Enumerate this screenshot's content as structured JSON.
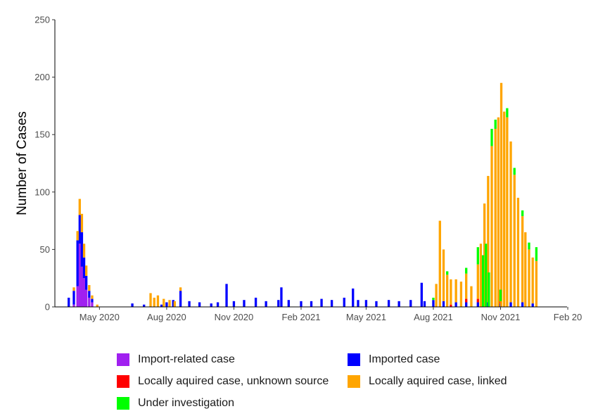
{
  "chart_data": {
    "type": "bar",
    "stacked": true,
    "title": "",
    "xlabel": "",
    "ylabel": "Number of Cases",
    "ylim": [
      0,
      250
    ],
    "y_ticks": [
      0,
      50,
      100,
      150,
      200,
      250
    ],
    "x_range": [
      "2020-03-01",
      "2022-01-31"
    ],
    "x_ticks": [
      {
        "date": "2020-05-01",
        "label": "May 2020"
      },
      {
        "date": "2020-08-01",
        "label": "Aug 2020"
      },
      {
        "date": "2020-11-01",
        "label": "Nov 2020"
      },
      {
        "date": "2021-02-01",
        "label": "Feb 2021"
      },
      {
        "date": "2021-05-01",
        "label": "May 2021"
      },
      {
        "date": "2021-08-01",
        "label": "Aug 2021"
      },
      {
        "date": "2021-11-01",
        "label": "Nov 2021"
      },
      {
        "date": "2022-02-01",
        "label": "Feb 20"
      }
    ],
    "grid": false,
    "legend_position": "bottom",
    "series": [
      {
        "key": "import_related",
        "name": "Import-related case",
        "color": "#a020f0",
        "points": [
          [
            "2020-03-27",
            2
          ],
          [
            "2020-04-01",
            18
          ],
          [
            "2020-04-04",
            55
          ],
          [
            "2020-04-07",
            35
          ],
          [
            "2020-04-10",
            25
          ],
          [
            "2020-04-13",
            15
          ],
          [
            "2020-04-17",
            8
          ],
          [
            "2020-04-21",
            4
          ]
        ]
      },
      {
        "key": "imported",
        "name": "Imported case",
        "color": "#0000ff",
        "points": [
          [
            "2020-03-20",
            8
          ],
          [
            "2020-03-27",
            12
          ],
          [
            "2020-04-01",
            40
          ],
          [
            "2020-04-04",
            25
          ],
          [
            "2020-04-07",
            30
          ],
          [
            "2020-04-10",
            18
          ],
          [
            "2020-04-13",
            12
          ],
          [
            "2020-04-17",
            6
          ],
          [
            "2020-04-21",
            3
          ],
          [
            "2020-06-15",
            3
          ],
          [
            "2020-07-01",
            2
          ],
          [
            "2020-07-25",
            2
          ],
          [
            "2020-08-01",
            4
          ],
          [
            "2020-08-10",
            6
          ],
          [
            "2020-08-20",
            14
          ],
          [
            "2020-09-01",
            5
          ],
          [
            "2020-09-15",
            4
          ],
          [
            "2020-10-01",
            3
          ],
          [
            "2020-10-10",
            4
          ],
          [
            "2020-10-22",
            20
          ],
          [
            "2020-11-01",
            5
          ],
          [
            "2020-11-15",
            6
          ],
          [
            "2020-12-01",
            8
          ],
          [
            "2020-12-15",
            5
          ],
          [
            "2021-01-01",
            6
          ],
          [
            "2021-01-05",
            17
          ],
          [
            "2021-01-15",
            6
          ],
          [
            "2021-02-01",
            5
          ],
          [
            "2021-02-15",
            5
          ],
          [
            "2021-03-01",
            7
          ],
          [
            "2021-03-15",
            6
          ],
          [
            "2021-04-01",
            8
          ],
          [
            "2021-04-13",
            16
          ],
          [
            "2021-04-20",
            6
          ],
          [
            "2021-05-01",
            6
          ],
          [
            "2021-05-15",
            5
          ],
          [
            "2021-06-01",
            6
          ],
          [
            "2021-06-15",
            5
          ],
          [
            "2021-07-01",
            6
          ],
          [
            "2021-07-16",
            21
          ],
          [
            "2021-07-20",
            5
          ],
          [
            "2021-08-01",
            6
          ],
          [
            "2021-08-15",
            5
          ],
          [
            "2021-09-01",
            4
          ],
          [
            "2021-09-15",
            4
          ],
          [
            "2021-10-01",
            4
          ],
          [
            "2021-10-15",
            4
          ],
          [
            "2021-11-01",
            3
          ],
          [
            "2021-11-15",
            4
          ],
          [
            "2021-12-01",
            4
          ],
          [
            "2021-12-15",
            3
          ]
        ]
      },
      {
        "key": "local_unknown",
        "name": "Locally aquired case, unknown source",
        "color": "#ff0000",
        "points": [
          [
            "2021-08-25",
            2
          ],
          [
            "2021-09-15",
            3
          ],
          [
            "2021-10-01",
            3
          ],
          [
            "2021-11-01",
            2
          ]
        ]
      },
      {
        "key": "local_linked",
        "name": "Locally aquired case, linked",
        "color": "#ffa500",
        "points": [
          [
            "2020-03-27",
            3
          ],
          [
            "2020-04-01",
            8
          ],
          [
            "2020-04-04",
            14
          ],
          [
            "2020-04-07",
            16
          ],
          [
            "2020-04-10",
            12
          ],
          [
            "2020-04-13",
            9
          ],
          [
            "2020-04-17",
            5
          ],
          [
            "2020-04-21",
            3
          ],
          [
            "2020-04-28",
            2
          ],
          [
            "2020-07-10",
            12
          ],
          [
            "2020-07-15",
            8
          ],
          [
            "2020-07-20",
            10
          ],
          [
            "2020-07-28",
            7
          ],
          [
            "2020-08-05",
            6
          ],
          [
            "2020-08-12",
            5
          ],
          [
            "2020-08-20",
            3
          ],
          [
            "2021-08-05",
            20
          ],
          [
            "2021-08-10",
            75
          ],
          [
            "2021-08-15",
            45
          ],
          [
            "2021-08-20",
            28
          ],
          [
            "2021-08-25",
            22
          ],
          [
            "2021-09-01",
            20
          ],
          [
            "2021-09-08",
            22
          ],
          [
            "2021-09-15",
            22
          ],
          [
            "2021-09-22",
            18
          ],
          [
            "2021-10-01",
            30
          ],
          [
            "2021-10-05",
            55
          ],
          [
            "2021-10-10",
            90
          ],
          [
            "2021-10-15",
            110
          ],
          [
            "2021-10-20",
            140
          ],
          [
            "2021-10-25",
            155
          ],
          [
            "2021-10-29",
            165
          ],
          [
            "2021-11-02",
            195
          ],
          [
            "2021-11-06",
            170
          ],
          [
            "2021-11-10",
            165
          ],
          [
            "2021-11-15",
            140
          ],
          [
            "2021-11-20",
            115
          ],
          [
            "2021-11-25",
            95
          ],
          [
            "2021-12-01",
            75
          ],
          [
            "2021-12-05",
            65
          ],
          [
            "2021-12-10",
            50
          ],
          [
            "2021-12-15",
            40
          ],
          [
            "2021-12-20",
            40
          ]
        ]
      },
      {
        "key": "under_investigation",
        "name": "Under investigation",
        "color": "#00ff00",
        "points": [
          [
            "2021-08-01",
            2
          ],
          [
            "2021-08-20",
            3
          ],
          [
            "2021-09-15",
            5
          ],
          [
            "2021-10-01",
            15
          ],
          [
            "2021-10-08",
            45
          ],
          [
            "2021-10-12",
            55
          ],
          [
            "2021-10-16",
            30
          ],
          [
            "2021-10-20",
            15
          ],
          [
            "2021-10-25",
            8
          ],
          [
            "2021-11-01",
            10
          ],
          [
            "2021-11-10",
            8
          ],
          [
            "2021-11-20",
            6
          ],
          [
            "2021-12-01",
            5
          ],
          [
            "2021-12-10",
            6
          ],
          [
            "2021-12-20",
            12
          ]
        ]
      }
    ]
  },
  "legend": [
    {
      "label": "Import-related case",
      "color": "#a020f0"
    },
    {
      "label": "Imported case",
      "color": "#0000ff"
    },
    {
      "label": "Locally aquired case, unknown source",
      "color": "#ff0000"
    },
    {
      "label": "Locally aquired case, linked",
      "color": "#ffa500"
    },
    {
      "label": "Under investigation",
      "color": "#00ff00"
    }
  ]
}
